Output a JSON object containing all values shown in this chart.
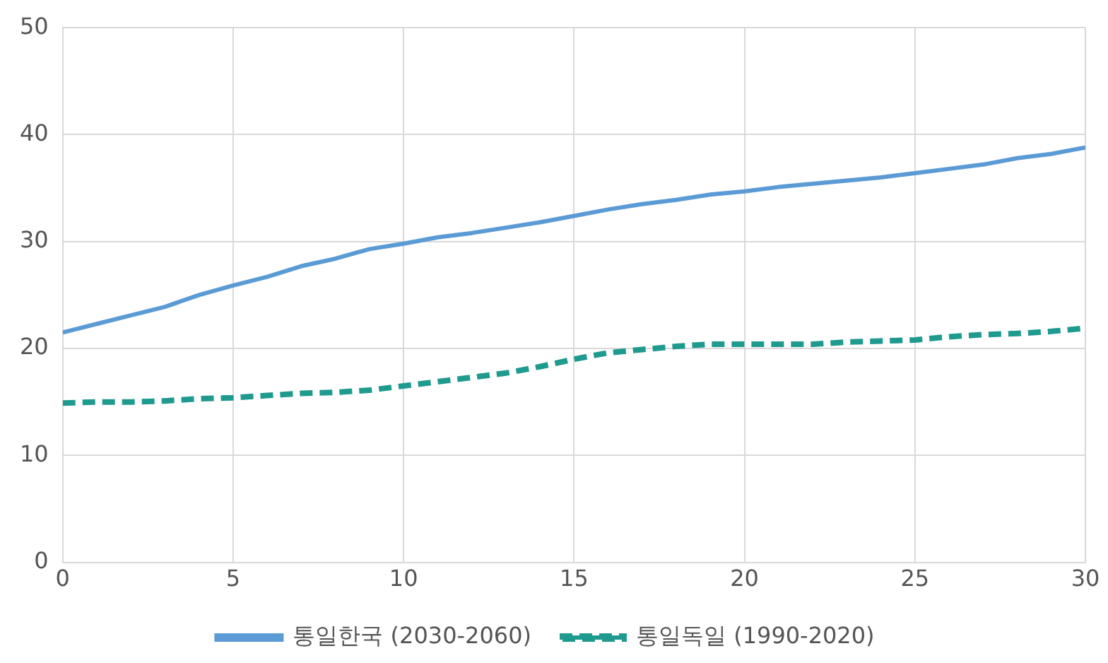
{
  "chart_data": {
    "type": "line",
    "x": [
      0,
      1,
      2,
      3,
      4,
      5,
      6,
      7,
      8,
      9,
      10,
      11,
      12,
      13,
      14,
      15,
      16,
      17,
      18,
      19,
      20,
      21,
      22,
      23,
      24,
      25,
      26,
      27,
      28,
      29,
      30
    ],
    "series": [
      {
        "name": "통일한국 (2030-2060)",
        "color": "#5b9bd5",
        "line_style": "solid",
        "values": [
          21.5,
          22.3,
          23.1,
          23.9,
          25.0,
          25.9,
          26.7,
          27.7,
          28.4,
          29.3,
          29.8,
          30.4,
          30.8,
          31.3,
          31.8,
          32.4,
          33.0,
          33.5,
          33.9,
          34.4,
          34.7,
          35.1,
          35.4,
          35.7,
          36.0,
          36.4,
          36.8,
          37.2,
          37.8,
          38.2,
          38.8
        ]
      },
      {
        "name": "통일독일 (1990-2020)",
        "color": "#1f9a8f",
        "line_style": "dashed",
        "values": [
          14.9,
          15.0,
          15.0,
          15.1,
          15.3,
          15.4,
          15.6,
          15.8,
          15.9,
          16.1,
          16.5,
          16.9,
          17.3,
          17.7,
          18.3,
          19.0,
          19.6,
          19.9,
          20.2,
          20.4,
          20.4,
          20.4,
          20.4,
          20.6,
          20.7,
          20.8,
          21.1,
          21.3,
          21.4,
          21.6,
          21.9
        ]
      }
    ],
    "xlim": [
      0,
      30
    ],
    "xticks": [
      0,
      5,
      10,
      15,
      20,
      25,
      30
    ],
    "ylim": [
      0,
      50
    ],
    "yticks": [
      0,
      10,
      20,
      30,
      40,
      50
    ],
    "grid": true,
    "legend": "bottom",
    "marker": "none"
  }
}
